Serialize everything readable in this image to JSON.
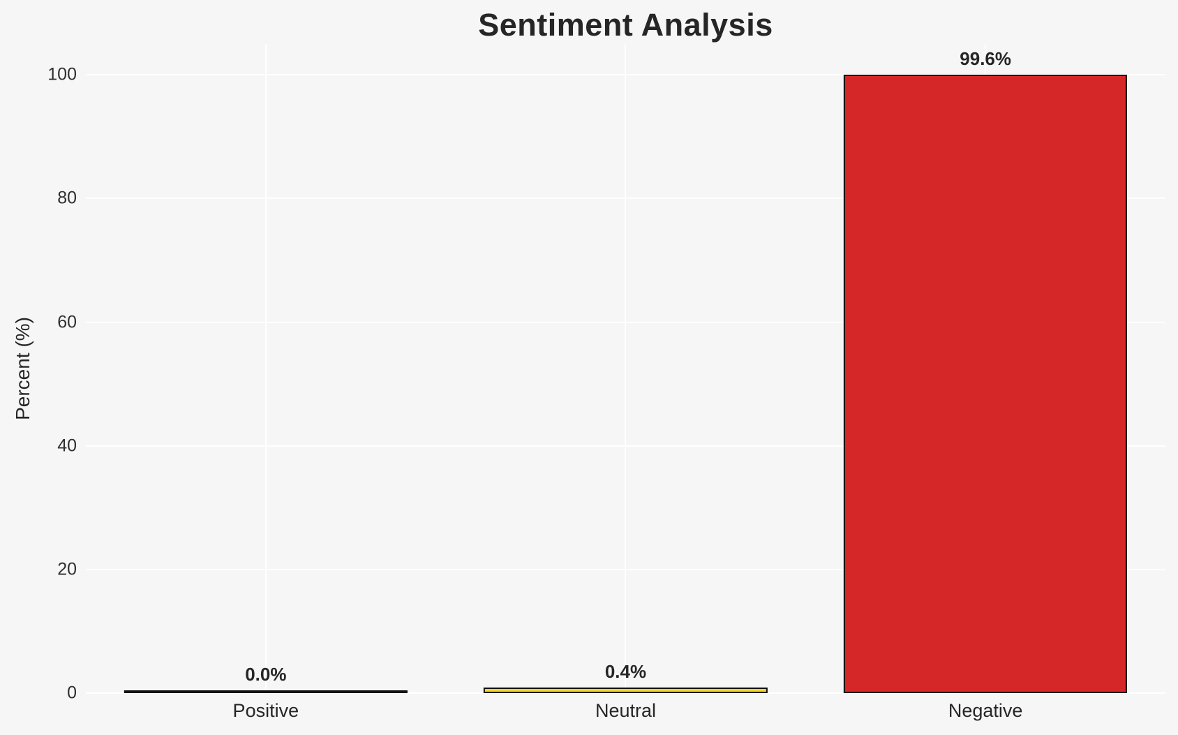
{
  "chart_data": {
    "type": "bar",
    "title": "Sentiment Analysis",
    "ylabel": "Percent (%)",
    "xlabel": "",
    "categories": [
      "Positive",
      "Neutral",
      "Negative"
    ],
    "values": [
      0.0,
      0.4,
      99.6
    ],
    "value_labels": [
      "0.0%",
      "0.4%",
      "99.6%"
    ],
    "bar_colors": [
      "#2ca02c",
      "#f5d327",
      "#d62728"
    ],
    "bar_edge_color": "#111111",
    "yticks": [
      0,
      20,
      40,
      60,
      80,
      100
    ],
    "ytick_labels": [
      "0",
      "20",
      "40",
      "60",
      "80",
      "100"
    ],
    "ylim": [
      0,
      105
    ],
    "grid": true,
    "gridline_color": "#ffffff",
    "background_color": "#f6f6f7",
    "legend_position": "none"
  }
}
